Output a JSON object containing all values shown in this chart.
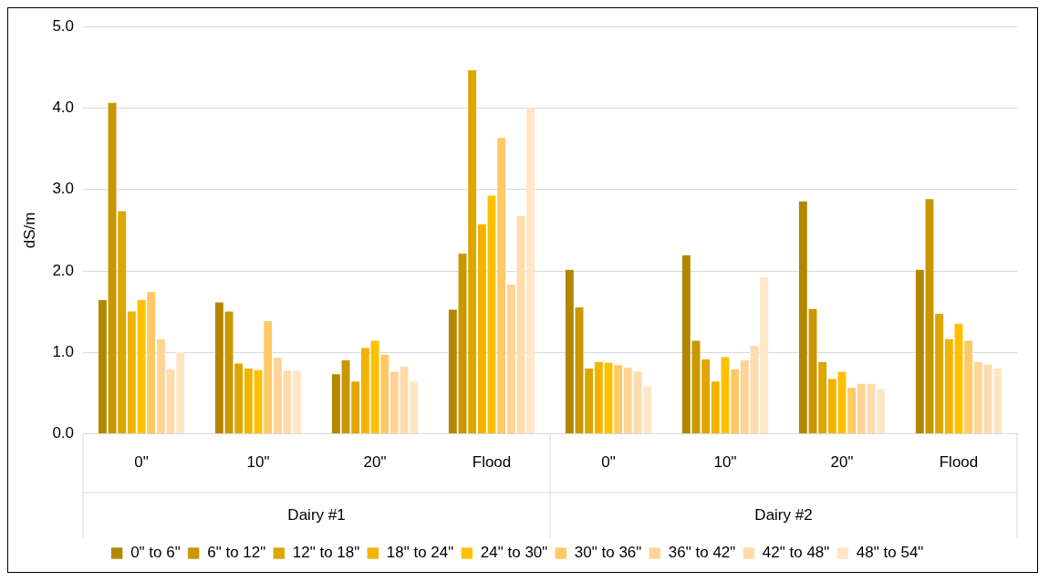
{
  "chart_data": {
    "type": "bar",
    "ylabel": "dS/m",
    "categories": [
      "0\"",
      "10\"",
      "20\"",
      "Flood",
      "0\"",
      "10\"",
      "20\"",
      "Flood"
    ],
    "annotations": [
      "Dairy #1",
      "Dairy #2"
    ],
    "ylim": [
      0,
      5
    ],
    "yticks": [
      {
        "value": 0,
        "label": "0.0"
      },
      {
        "value": 1,
        "label": "1.0"
      },
      {
        "value": 2,
        "label": "2.0"
      },
      {
        "value": 3,
        "label": "3.0"
      },
      {
        "value": 4,
        "label": "4.0"
      },
      {
        "value": 5,
        "label": "5.0"
      }
    ],
    "grid": "y",
    "legend": "bottom",
    "series": [
      {
        "name": "0\" to 6\"",
        "color": "#b38600",
        "values": [
          1.65,
          1.62,
          0.74,
          1.53,
          2.02,
          2.2,
          2.86,
          2.02
        ]
      },
      {
        "name": "6\" to 12\"",
        "color": "#c99700",
        "values": [
          4.07,
          1.51,
          0.91,
          2.22,
          1.56,
          1.15,
          1.54,
          2.89
        ]
      },
      {
        "name": "12\" to 18\"",
        "color": "#dda600",
        "values": [
          2.74,
          0.87,
          0.65,
          4.47,
          0.81,
          0.92,
          0.89,
          1.48
        ]
      },
      {
        "name": "18\" to 24\"",
        "color": "#f0b400",
        "values": [
          1.51,
          0.81,
          1.06,
          2.58,
          0.89,
          0.65,
          0.68,
          1.17
        ]
      },
      {
        "name": "24\" to 30\"",
        "color": "#ffc000",
        "values": [
          1.65,
          0.79,
          1.15,
          2.93,
          0.88,
          0.95,
          0.77,
          1.36
        ]
      },
      {
        "name": "30\" to 36\"",
        "color": "#ffc966",
        "values": [
          1.75,
          1.39,
          0.98,
          3.64,
          0.85,
          0.8,
          0.57,
          1.15
        ]
      },
      {
        "name": "36\" to 42\"",
        "color": "#ffd495",
        "values": [
          1.17,
          0.94,
          0.77,
          1.84,
          0.82,
          0.91,
          0.62,
          0.89
        ]
      },
      {
        "name": "42\" to 48\"",
        "color": "#ffdcac",
        "values": [
          0.8,
          0.78,
          0.83,
          2.68,
          0.77,
          1.09,
          0.62,
          0.86
        ]
      },
      {
        "name": "48\" to 54\"",
        "color": "#ffe6c4",
        "values": [
          1.0,
          0.78,
          0.65,
          4.0,
          0.59,
          1.93,
          0.56,
          0.81
        ]
      }
    ]
  }
}
